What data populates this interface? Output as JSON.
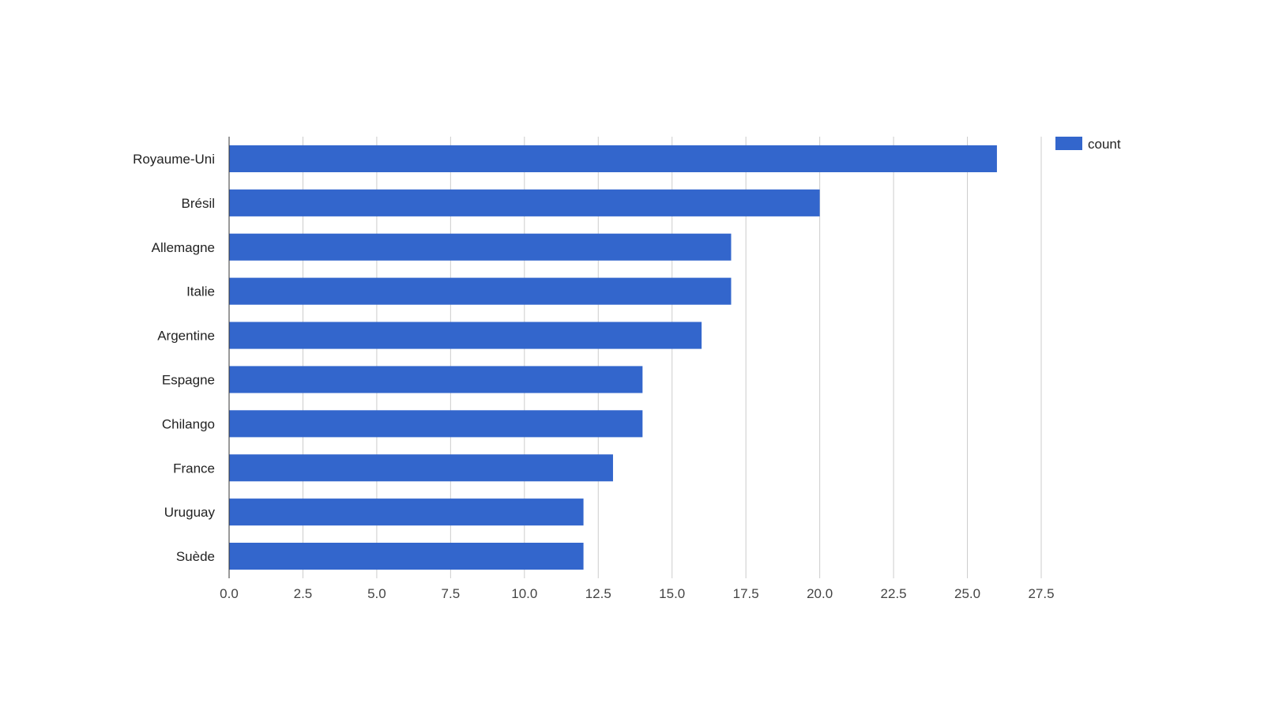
{
  "chart_data": {
    "type": "bar",
    "orientation": "horizontal",
    "categories": [
      "Royaume-Uni",
      "Brésil",
      "Allemagne",
      "Italie",
      "Argentine",
      "Espagne",
      "Chilango",
      "France",
      "Uruguay",
      "Suède"
    ],
    "series": [
      {
        "name": "count",
        "values": [
          26,
          20,
          17,
          17,
          16,
          14,
          14,
          13,
          12,
          12
        ],
        "color": "#3366cc"
      }
    ],
    "xlim": [
      0,
      27.5
    ],
    "xticks": [
      "0.0",
      "2.5",
      "5.0",
      "7.5",
      "10.0",
      "12.5",
      "15.0",
      "17.5",
      "20.0",
      "22.5",
      "25.0",
      "27.5"
    ],
    "title": "",
    "xlabel": "",
    "ylabel": "",
    "grid": true,
    "legend": "top-right"
  }
}
